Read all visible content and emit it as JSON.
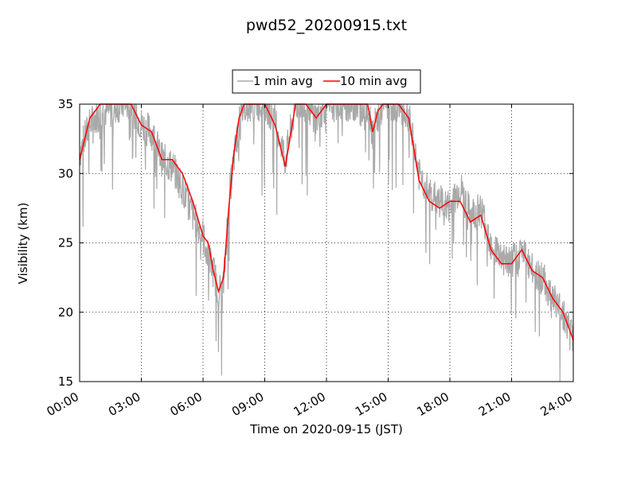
{
  "chart_data": {
    "type": "line",
    "title": "pwd52_20200915.txt",
    "xlabel": "Time on 2020-09-15 (JST)",
    "ylabel": "Visibility (km)",
    "xlim": [
      0,
      24
    ],
    "ylim": [
      15,
      35
    ],
    "x_ticks": [
      "00:00",
      "03:00",
      "06:00",
      "09:00",
      "12:00",
      "15:00",
      "18:00",
      "21:00",
      "24:00"
    ],
    "y_ticks": [
      "15",
      "20",
      "25",
      "30",
      "35"
    ],
    "grid": true,
    "legend_position": "top-center, above plot",
    "series": [
      {
        "name": "1 min avg",
        "color": "#a9a9a9",
        "x": [
          0,
          0.5,
          1,
          1.5,
          2,
          2.5,
          3,
          3.5,
          4,
          4.5,
          5,
          5.5,
          6,
          6.25,
          6.5,
          6.75,
          7,
          7.25,
          7.5,
          7.75,
          8,
          8.5,
          9,
          9.5,
          10,
          10.5,
          11,
          11.5,
          12,
          12.5,
          13,
          13.5,
          14,
          14.25,
          14.5,
          14.75,
          15,
          15.5,
          16,
          16.5,
          17,
          17.5,
          18,
          18.5,
          19,
          19.5,
          20,
          20.5,
          21,
          21.5,
          22,
          22.5,
          23,
          23.5,
          24
        ],
        "y": [
          31.5,
          33.5,
          34.5,
          34.5,
          35,
          35,
          33.5,
          33,
          31,
          30.5,
          29,
          27,
          25.5,
          24,
          23,
          21.5,
          22,
          28,
          31,
          33.5,
          35,
          35,
          35,
          34,
          31,
          35,
          35,
          34,
          35,
          35,
          35,
          35,
          35,
          33,
          34,
          35,
          35,
          35,
          34,
          30,
          28.5,
          28,
          27.5,
          29,
          27,
          27.5,
          25,
          24,
          23.5,
          24.5,
          23,
          22.5,
          21,
          20,
          18
        ]
      },
      {
        "name": "10 min avg",
        "color": "#ff0000",
        "x": [
          0,
          0.5,
          1,
          1.5,
          2,
          2.5,
          3,
          3.5,
          4,
          4.5,
          5,
          5.5,
          6,
          6.25,
          6.5,
          6.75,
          7,
          7.25,
          7.5,
          7.75,
          8,
          8.5,
          9,
          9.5,
          10,
          10.5,
          11,
          11.5,
          12,
          12.5,
          13,
          13.5,
          14,
          14.25,
          14.5,
          14.75,
          15,
          15.5,
          16,
          16.5,
          17,
          17.5,
          18,
          18.5,
          19,
          19.5,
          20,
          20.5,
          21,
          21.5,
          22,
          22.5,
          23,
          23.5,
          24
        ],
        "y": [
          31,
          34,
          35,
          35,
          35,
          35,
          33.5,
          33,
          31,
          31,
          30,
          28,
          25.5,
          25,
          23,
          21.5,
          22.5,
          27.5,
          31.5,
          34,
          35,
          35,
          35,
          33.5,
          30.5,
          35,
          35,
          34,
          35,
          35,
          35,
          35,
          35,
          33,
          34.5,
          35,
          35,
          35,
          34,
          29.5,
          28,
          27.5,
          28,
          28,
          26.5,
          27,
          24.5,
          23.5,
          23.5,
          24.5,
          23,
          22.5,
          21,
          20,
          18
        ]
      }
    ]
  }
}
